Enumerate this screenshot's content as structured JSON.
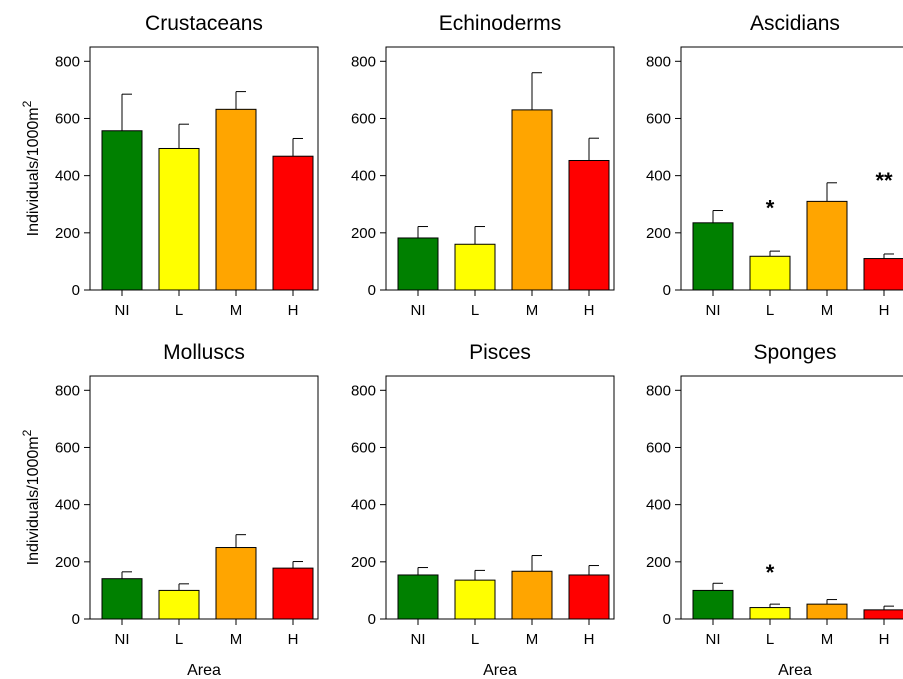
{
  "colors": {
    "NI": "#008000",
    "L": "#ffff00",
    "M": "#ffa500",
    "H": "#ff0000"
  },
  "chart_data": [
    {
      "type": "bar",
      "title": "Crustaceans",
      "categories": [
        "NI",
        "L",
        "M",
        "H"
      ],
      "values": [
        557,
        495,
        632,
        468
      ],
      "errors": [
        128,
        85,
        62,
        62
      ],
      "ylim": [
        0,
        850
      ],
      "yticks": [
        0,
        200,
        400,
        600,
        800
      ],
      "ylabel": "Individuals/1000m",
      "ylabel_sup": "2",
      "xlabel": "",
      "annotations": []
    },
    {
      "type": "bar",
      "title": "Echinoderms",
      "categories": [
        "NI",
        "L",
        "M",
        "H"
      ],
      "values": [
        182,
        160,
        630,
        453
      ],
      "errors": [
        40,
        62,
        130,
        78
      ],
      "ylim": [
        0,
        850
      ],
      "yticks": [
        0,
        200,
        400,
        600,
        800
      ],
      "ylabel": "",
      "xlabel": "",
      "annotations": []
    },
    {
      "type": "bar",
      "title": "Ascidians",
      "categories": [
        "NI",
        "L",
        "M",
        "H"
      ],
      "values": [
        235,
        118,
        310,
        110
      ],
      "errors": [
        43,
        18,
        65,
        16
      ],
      "ylim": [
        0,
        850
      ],
      "yticks": [
        0,
        200,
        400,
        600,
        800
      ],
      "ylabel": "",
      "xlabel": "",
      "annotations": [
        {
          "category": "L",
          "y": 310,
          "text": "*"
        },
        {
          "category": "H",
          "y": 405,
          "text": "**"
        }
      ]
    },
    {
      "type": "bar",
      "title": "Molluscs",
      "categories": [
        "NI",
        "L",
        "M",
        "H"
      ],
      "values": [
        141,
        100,
        250,
        178
      ],
      "errors": [
        24,
        23,
        45,
        23
      ],
      "ylim": [
        0,
        850
      ],
      "yticks": [
        0,
        200,
        400,
        600,
        800
      ],
      "ylabel": "Individuals/1000m",
      "ylabel_sup": "2",
      "xlabel": "Area",
      "annotations": []
    },
    {
      "type": "bar",
      "title": "Pisces",
      "categories": [
        "NI",
        "L",
        "M",
        "H"
      ],
      "values": [
        154,
        136,
        167,
        154
      ],
      "errors": [
        26,
        34,
        55,
        33
      ],
      "ylim": [
        0,
        850
      ],
      "yticks": [
        0,
        200,
        400,
        600,
        800
      ],
      "ylabel": "",
      "xlabel": "Area",
      "annotations": []
    },
    {
      "type": "bar",
      "title": "Sponges",
      "categories": [
        "NI",
        "L",
        "M",
        "H"
      ],
      "values": [
        100,
        40,
        52,
        32
      ],
      "errors": [
        25,
        12,
        16,
        13
      ],
      "ylim": [
        0,
        850
      ],
      "yticks": [
        0,
        200,
        400,
        600,
        800
      ],
      "ylabel": "",
      "xlabel": "Area",
      "annotations": [
        {
          "category": "L",
          "y": 185,
          "text": "*"
        }
      ]
    }
  ]
}
